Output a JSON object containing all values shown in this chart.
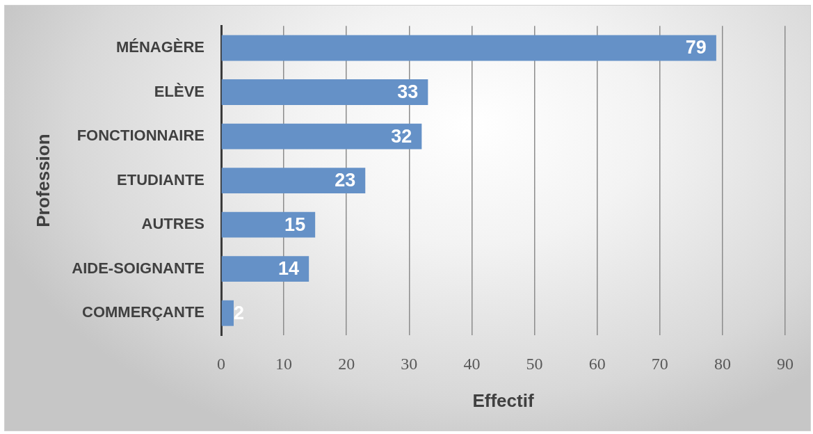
{
  "chart_data": {
    "type": "bar",
    "orientation": "horizontal",
    "categories": [
      "MÉNAGÈRE",
      "ELÈVE",
      "FONCTIONNAIRE",
      "ETUDIANTE",
      "AUTRES",
      "AIDE-SOIGNANTE",
      "COMMERÇANTE"
    ],
    "values": [
      79,
      33,
      32,
      23,
      15,
      14,
      2
    ],
    "color": "#6591c7",
    "xlabel": "Effectif",
    "ylabel": "Profession",
    "xlim": [
      0,
      90
    ],
    "xticks": [
      0,
      10,
      20,
      30,
      40,
      50,
      60,
      70,
      80,
      90
    ],
    "grid": "x",
    "data_labels": true
  }
}
